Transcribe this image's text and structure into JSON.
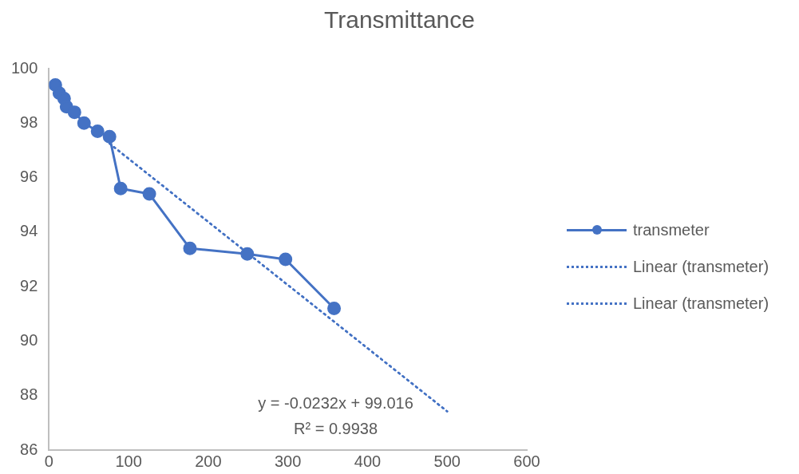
{
  "chart_data": {
    "type": "line",
    "title": "Transmittance",
    "series": [
      {
        "name": "transmeter",
        "color": "#4472c4",
        "marker": "circle",
        "line_style": "solid",
        "x": [
          8,
          13,
          19,
          22,
          32,
          44,
          61,
          76,
          90,
          126,
          177,
          249,
          297,
          358
        ],
        "values": [
          99.4,
          99.1,
          98.9,
          98.6,
          98.4,
          98.0,
          97.7,
          97.5,
          95.6,
          95.4,
          93.4,
          93.2,
          93.0,
          91.2
        ]
      },
      {
        "name": "Linear (transmeter)",
        "color": "#4472c4",
        "marker": "none",
        "line_style": "dotted",
        "x": [
          76,
          500
        ],
        "values": [
          97.25,
          87.42
        ]
      },
      {
        "name": "Linear (transmeter)",
        "color": "#4472c4",
        "marker": "none",
        "line_style": "dotted",
        "x": [
          76,
          500
        ],
        "values": [
          97.25,
          87.42
        ]
      }
    ],
    "xlim": [
      0,
      600
    ],
    "xticks": [
      0,
      100,
      200,
      300,
      400,
      500,
      600
    ],
    "ylim": [
      86,
      100
    ],
    "yticks": [
      86,
      88,
      90,
      92,
      94,
      96,
      98,
      100
    ],
    "grid": false,
    "legend": "right",
    "annotations": [
      "y = -0.0232x + 99.016",
      "R² = 0.9938"
    ]
  }
}
